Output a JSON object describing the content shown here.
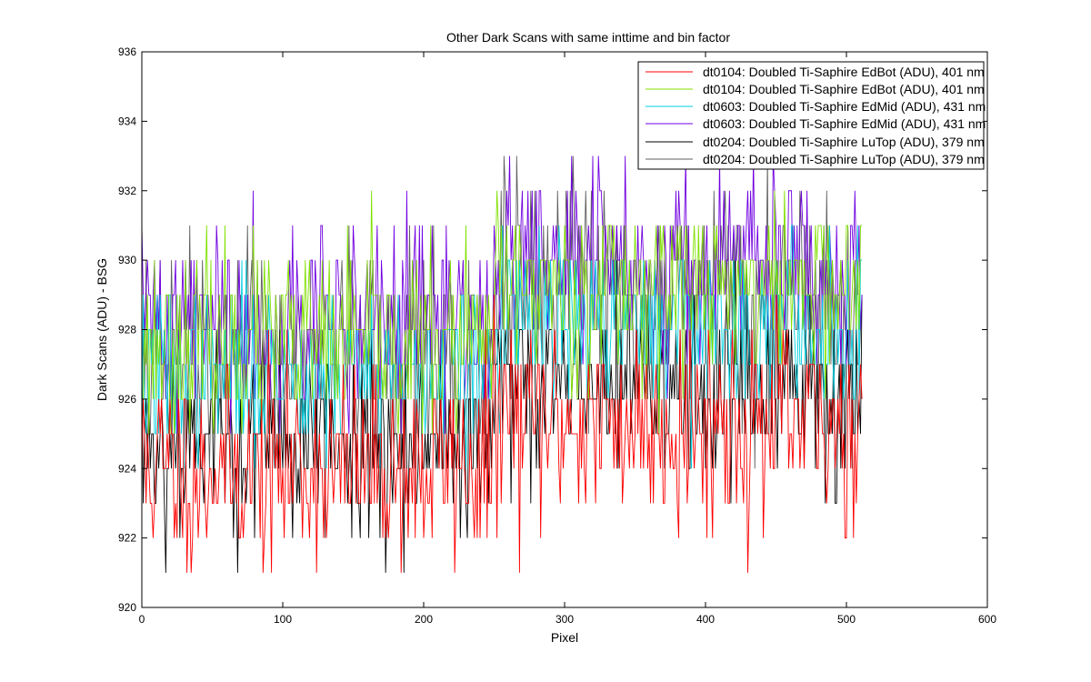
{
  "chart_data": {
    "type": "line",
    "title": "Other Dark Scans with same inttime and bin factor",
    "xlabel": "Pixel",
    "ylabel": "Dark Scans (ADU) - BSG",
    "xlim": [
      0,
      600
    ],
    "ylim": [
      920,
      936
    ],
    "xticks": [
      0,
      100,
      200,
      300,
      400,
      500,
      600
    ],
    "yticks": [
      920,
      922,
      924,
      926,
      928,
      930,
      932,
      934,
      936
    ],
    "grid": false,
    "legend_position": "top-right",
    "x": "pixel index 0–511 (512 samples per series)",
    "series": [
      {
        "name": "dt0104: Doubled Ti-Saphire EdBot (ADU), 401 nm",
        "color": "#ff0000",
        "x_range": [
          0,
          511
        ],
        "mean_segments": [
          {
            "x_from": 0,
            "x_to": 250,
            "mean": 924.0
          },
          {
            "x_from": 250,
            "x_to": 511,
            "mean": 925.3
          }
        ],
        "min": 921,
        "max": 933,
        "noise_level": 1.5,
        "seed": 11
      },
      {
        "name": "dt0104: Doubled Ti-Saphire EdBot (ADU), 401 nm",
        "color": "#80e000",
        "x_range": [
          0,
          511
        ],
        "mean_segments": [
          {
            "x_from": 0,
            "x_to": 250,
            "mean": 927.6
          },
          {
            "x_from": 250,
            "x_to": 511,
            "mean": 929.2
          }
        ],
        "min": 925,
        "max": 932,
        "noise_level": 1.3,
        "seed": 23
      },
      {
        "name": "dt0603: Doubled Ti-Saphire EdMid (ADU), 431 nm",
        "color": "#00d0e0",
        "x_range": [
          0,
          511
        ],
        "mean_segments": [
          {
            "x_from": 0,
            "x_to": 250,
            "mean": 926.8
          },
          {
            "x_from": 250,
            "x_to": 511,
            "mean": 928.1
          }
        ],
        "min": 922,
        "max": 931,
        "noise_level": 1.2,
        "seed": 37
      },
      {
        "name": "dt0603: Doubled Ti-Saphire EdMid (ADU), 431 nm",
        "color": "#7000e0",
        "x_range": [
          0,
          511
        ],
        "mean_segments": [
          {
            "x_from": 0,
            "x_to": 250,
            "mean": 928.3
          },
          {
            "x_from": 250,
            "x_to": 511,
            "mean": 929.9
          }
        ],
        "min": 925,
        "max": 933,
        "noise_level": 1.4,
        "seed": 41
      },
      {
        "name": "dt0204: Doubled Ti-Saphire LuTop (ADU), 379 nm",
        "color": "#000000",
        "x_range": [
          0,
          511
        ],
        "mean_segments": [
          {
            "x_from": 0,
            "x_to": 250,
            "mean": 924.8
          },
          {
            "x_from": 250,
            "x_to": 511,
            "mean": 926.2
          }
        ],
        "min": 921,
        "max": 933,
        "noise_level": 1.4,
        "seed": 53
      },
      {
        "name": "dt0204: Doubled Ti-Saphire LuTop (ADU), 379 nm",
        "color": "#606060",
        "x_range": [
          0,
          511
        ],
        "mean_segments": [
          {
            "x_from": 0,
            "x_to": 250,
            "mean": 927.0
          },
          {
            "x_from": 250,
            "x_to": 511,
            "mean": 928.8
          }
        ],
        "min": 921,
        "max": 933,
        "noise_level": 1.6,
        "seed": 67
      }
    ]
  }
}
